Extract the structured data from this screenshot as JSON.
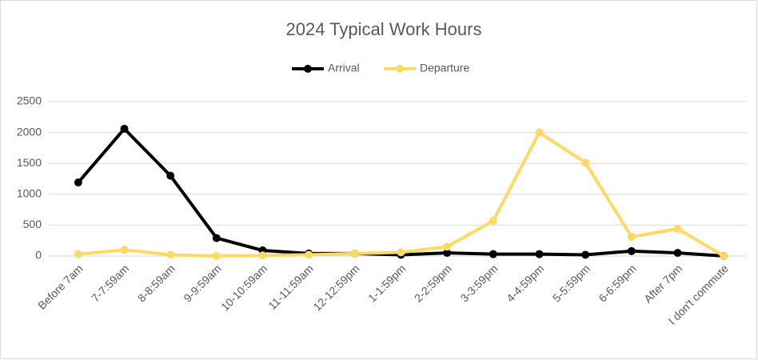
{
  "chart_data": {
    "type": "line",
    "title": "2024 Typical Work Hours",
    "categories": [
      "Before 7am",
      "7-7:59am",
      "8-8:59am",
      "9-9:59am",
      "10-10:59am",
      "11-11:59am",
      "12-12:59pm",
      "1-1:59pm",
      "2-2:59pm",
      "3-3:59pm",
      "4-4:59pm",
      "5-5:59pm",
      "6-6:59pm",
      "After 7pm",
      "I don't commute"
    ],
    "series": [
      {
        "name": "Arrival",
        "color": "#000000",
        "values": [
          1190,
          2060,
          1300,
          290,
          90,
          40,
          40,
          20,
          50,
          30,
          30,
          20,
          80,
          50,
          0
        ]
      },
      {
        "name": "Departure",
        "color": "#ffd966",
        "values": [
          30,
          100,
          20,
          0,
          10,
          20,
          40,
          60,
          150,
          570,
          2000,
          1510,
          310,
          440,
          0
        ]
      }
    ],
    "ylim": [
      0,
      2500
    ],
    "yticks": [
      0,
      500,
      1000,
      1500,
      2000,
      2500
    ],
    "grid": true,
    "legend": "top"
  }
}
